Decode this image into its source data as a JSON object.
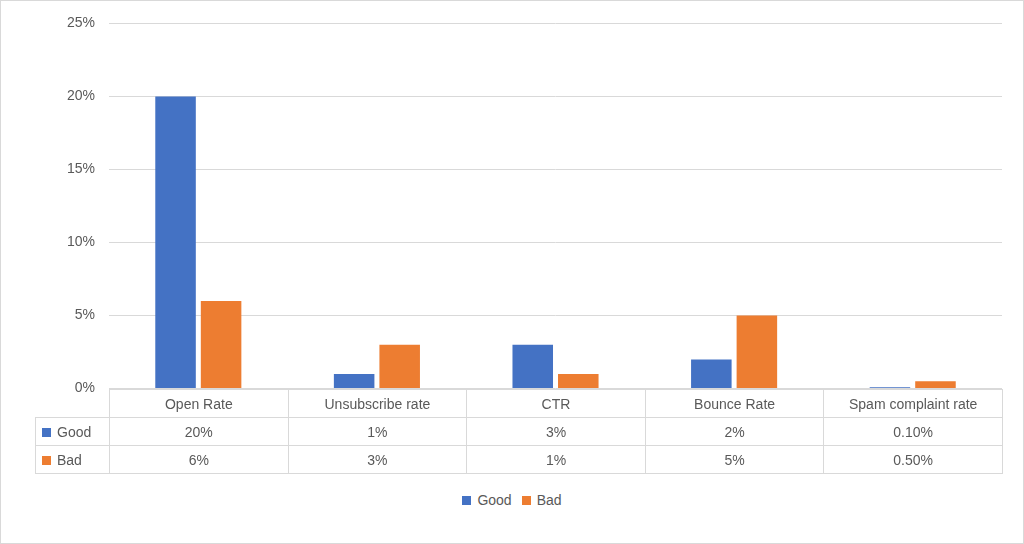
{
  "chart_data": {
    "type": "bar",
    "categories": [
      "Open Rate",
      "Unsubscribe rate",
      "CTR",
      "Bounce Rate",
      "Spam complaint rate"
    ],
    "series": [
      {
        "name": "Good",
        "color": "#4472c4",
        "values": [
          20,
          1,
          3,
          2,
          0.1
        ],
        "value_labels": [
          "20%",
          "1%",
          "3%",
          "2%",
          "0.10%"
        ]
      },
      {
        "name": "Bad",
        "color": "#ed7d31",
        "values": [
          6,
          3,
          1,
          5,
          0.5
        ],
        "value_labels": [
          "6%",
          "3%",
          "1%",
          "5%",
          "0.50%"
        ]
      }
    ],
    "ylim": [
      0,
      25
    ],
    "yticks": [
      {
        "value": 0,
        "label": "0%"
      },
      {
        "value": 5,
        "label": "5%"
      },
      {
        "value": 10,
        "label": "10%"
      },
      {
        "value": 15,
        "label": "15%"
      },
      {
        "value": 20,
        "label": "20%"
      },
      {
        "value": 25,
        "label": "25%"
      }
    ],
    "grid": true,
    "legend": "bottom"
  }
}
